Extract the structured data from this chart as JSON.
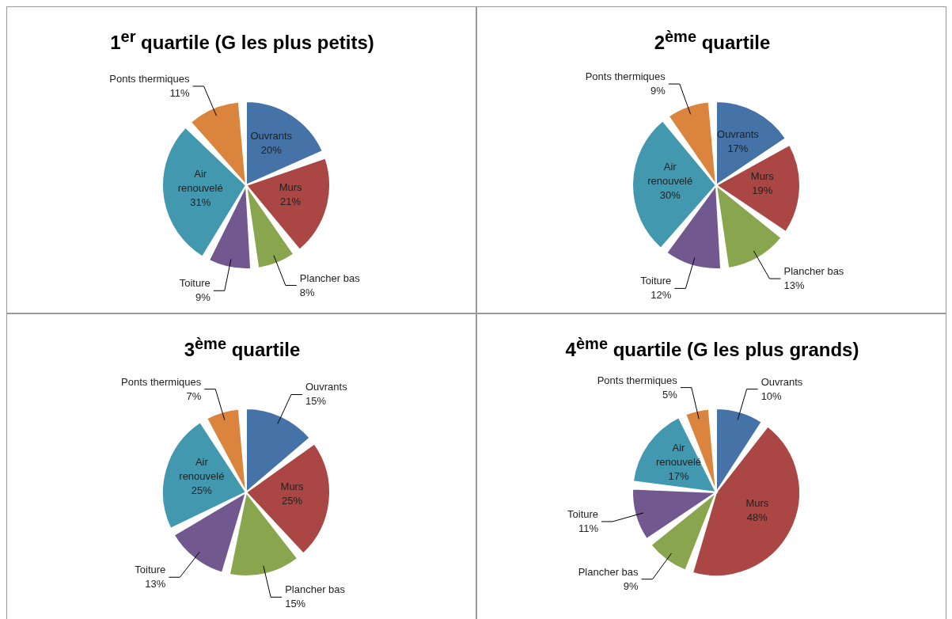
{
  "chart_data": [
    {
      "type": "pie",
      "title": "1$^{er}$ quartile (G les plus petits)",
      "categories": [
        "Ouvrants",
        "Murs",
        "Plancher bas",
        "Toiture",
        "Air renouvelé",
        "Ponts thermiques"
      ],
      "values": [
        20,
        21,
        8,
        9,
        31,
        11
      ],
      "value_labels": [
        "20%",
        "21%",
        "8%",
        "9%",
        "31%",
        "11%"
      ],
      "colors": [
        "#4572a7",
        "#aa4643",
        "#89a54e",
        "#71588f",
        "#4198af",
        "#db843d"
      ],
      "legend": false
    },
    {
      "type": "pie",
      "title": "2$^{ème}$ quartile",
      "categories": [
        "Ouvrants",
        "Murs",
        "Plancher bas",
        "Toiture",
        "Air renouvelé",
        "Ponts thermiques"
      ],
      "values": [
        17,
        19,
        13,
        12,
        30,
        9
      ],
      "value_labels": [
        "17%",
        "19%",
        "13%",
        "12%",
        "30%",
        "9%"
      ],
      "colors": [
        "#4572a7",
        "#aa4643",
        "#89a54e",
        "#71588f",
        "#4198af",
        "#db843d"
      ],
      "legend": false
    },
    {
      "type": "pie",
      "title": "3$^{ème}$ quartile",
      "categories": [
        "Ouvrants",
        "Murs",
        "Plancher bas",
        "Toiture",
        "Air renouvelé",
        "Ponts thermiques"
      ],
      "values": [
        15,
        25,
        15,
        13,
        25,
        7
      ],
      "value_labels": [
        "15%",
        "25%",
        "15%",
        "13%",
        "25%",
        "7%"
      ],
      "colors": [
        "#4572a7",
        "#aa4643",
        "#89a54e",
        "#71588f",
        "#4198af",
        "#db843d"
      ],
      "legend": false
    },
    {
      "type": "pie",
      "title": "4$^{ème}$ quartile (G les plus grands)",
      "categories": [
        "Ouvrants",
        "Murs",
        "Plancher bas",
        "Toiture",
        "Air renouvelé",
        "Ponts thermiques"
      ],
      "values": [
        10,
        48,
        9,
        11,
        17,
        5
      ],
      "value_labels": [
        "10%",
        "48%",
        "9%",
        "11%",
        "17%",
        "5%"
      ],
      "colors": [
        "#4572a7",
        "#aa4643",
        "#89a54e",
        "#71588f",
        "#4198af",
        "#db843d"
      ],
      "legend": false
    }
  ]
}
